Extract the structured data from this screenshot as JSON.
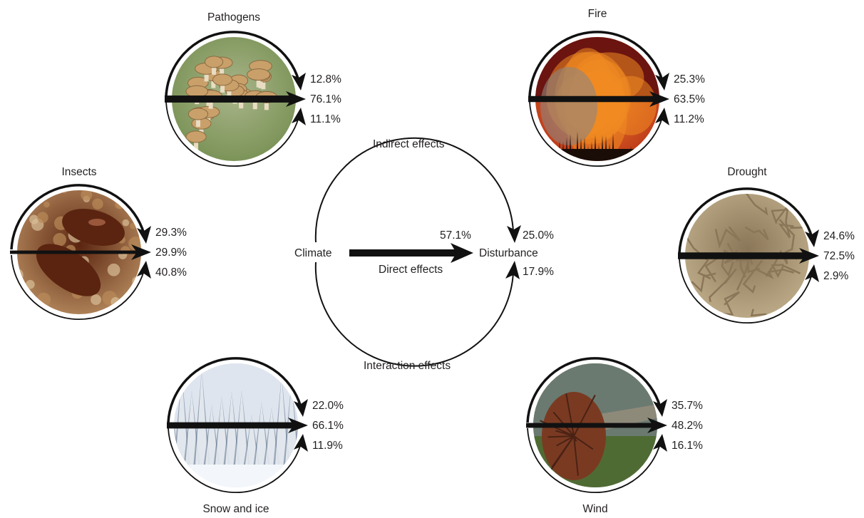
{
  "center": {
    "climate": "Climate",
    "disturbance": "Disturbance",
    "direct_label": "Direct effects",
    "indirect_label": "Indirect effects",
    "interaction_label": "Interaction effects",
    "direct_pct": "57.1%",
    "indirect_pct": "25.0%",
    "interaction_pct": "17.9%"
  },
  "agents": [
    {
      "key": "pathogens",
      "title": "Pathogens",
      "indirect": "12.8%",
      "direct": "76.1%",
      "interaction": "11.1%",
      "photo": "mushroom-cluster",
      "palette": [
        "#6f8a4a",
        "#a9b58a",
        "#c9a06a"
      ]
    },
    {
      "key": "fire",
      "title": "Fire",
      "indirect": "25.3%",
      "direct": "63.5%",
      "interaction": "11.2%",
      "photo": "forest-fire",
      "palette": [
        "#b2261a",
        "#f08a22",
        "#1a0d08"
      ]
    },
    {
      "key": "insects",
      "title": "Insects",
      "indirect": "29.3%",
      "direct": "29.9%",
      "interaction": "40.8%",
      "photo": "bark-beetles",
      "palette": [
        "#c49a6a",
        "#5a2410",
        "#e2c8a4"
      ]
    },
    {
      "key": "drought",
      "title": "Drought",
      "indirect": "24.6%",
      "direct": "72.5%",
      "interaction": "2.9%",
      "photo": "cracked-soil",
      "palette": [
        "#c8b692",
        "#8a7658",
        "#e0d2b2"
      ]
    },
    {
      "key": "snow",
      "title": "Snow and ice",
      "indirect": "22.0%",
      "direct": "66.1%",
      "interaction": "11.9%",
      "photo": "snowy-forest",
      "palette": [
        "#e9eef5",
        "#9fb1c6",
        "#5b6f86"
      ]
    },
    {
      "key": "wind",
      "title": "Wind",
      "indirect": "35.7%",
      "direct": "48.2%",
      "interaction": "16.1%",
      "photo": "uprooted-tree",
      "palette": [
        "#4f6b34",
        "#7a3a22",
        "#6a7a70"
      ]
    }
  ]
}
